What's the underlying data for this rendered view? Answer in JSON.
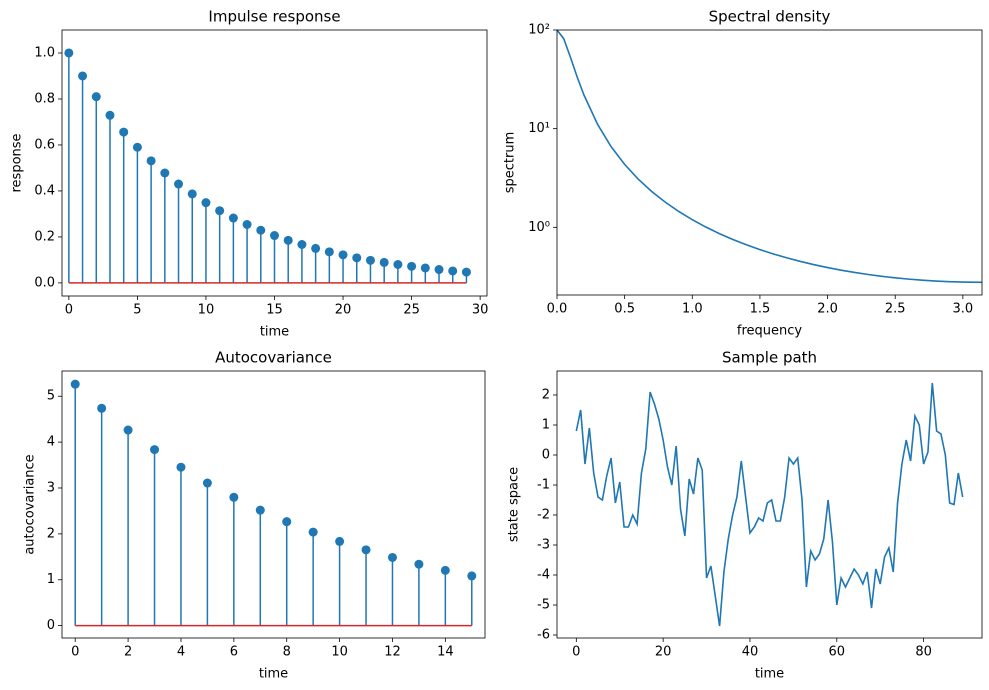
{
  "chart_data": [
    {
      "type": "stem",
      "title": "Impulse response",
      "xlabel": "time",
      "ylabel": "response",
      "x": [
        0,
        1,
        2,
        3,
        4,
        5,
        6,
        7,
        8,
        9,
        10,
        11,
        12,
        13,
        14,
        15,
        16,
        17,
        18,
        19,
        20,
        21,
        22,
        23,
        24,
        25,
        26,
        27,
        28,
        29
      ],
      "values": [
        1.0,
        0.9,
        0.81,
        0.729,
        0.656,
        0.59,
        0.531,
        0.478,
        0.43,
        0.387,
        0.349,
        0.314,
        0.282,
        0.254,
        0.229,
        0.206,
        0.185,
        0.167,
        0.15,
        0.135,
        0.122,
        0.109,
        0.098,
        0.089,
        0.08,
        0.072,
        0.065,
        0.058,
        0.052,
        0.047
      ],
      "color": "#1f77b4",
      "baseline_color": "#d62728",
      "xlim": [
        -0.5,
        30.5
      ],
      "xticks": [
        0,
        5,
        10,
        15,
        20,
        25,
        30
      ],
      "ylim": [
        -0.057,
        1.1
      ],
      "yticks": [
        {
          "value": 0,
          "label": "0.0"
        },
        0.2,
        0.4,
        0.6,
        0.8,
        {
          "value": 1,
          "label": "1.0"
        }
      ]
    },
    {
      "type": "line",
      "title": "Spectral density",
      "xlabel": "frequency",
      "ylabel": "spectrum",
      "x": [
        0,
        0.05,
        0.1,
        0.15,
        0.2,
        0.3,
        0.4,
        0.5,
        0.6,
        0.7,
        0.8,
        0.9,
        1.0,
        1.1,
        1.2,
        1.3,
        1.4,
        1.5,
        1.6,
        1.7,
        1.8,
        1.9,
        2.0,
        2.1,
        2.2,
        2.3,
        2.4,
        2.5,
        2.6,
        2.7,
        2.8,
        2.9,
        3.0,
        3.1416
      ],
      "values": [
        100,
        81.63,
        52.65,
        33.1,
        21.8,
        11.06,
        6.575,
        4.341,
        3.083,
        2.308,
        1.799,
        1.447,
        1.194,
        1.0065,
        0.8637,
        0.7527,
        0.6649,
        0.5943,
        0.5369,
        0.4897,
        0.4507,
        0.4181,
        0.3908,
        0.3678,
        0.3485,
        0.3323,
        0.3187,
        0.3075,
        0.2983,
        0.2909,
        0.2852,
        0.2811,
        0.2784,
        0.277
      ],
      "color": "#1f77b4",
      "log_y": true,
      "xlim": [
        0,
        3.1416
      ],
      "xticks": [
        {
          "value": 0,
          "label": "0.0"
        },
        0.5,
        {
          "value": 1,
          "label": "1.0"
        },
        1.5,
        {
          "value": 2,
          "label": "2.0"
        },
        2.5,
        {
          "value": 3,
          "label": "3.0"
        }
      ],
      "ylim": [
        0.206,
        100
      ],
      "yticks": [
        {
          "value": 1,
          "label": "10⁰"
        },
        {
          "value": 10,
          "label": "10¹"
        },
        {
          "value": 100,
          "label": "10²"
        }
      ]
    },
    {
      "type": "stem",
      "title": "Autocovariance",
      "xlabel": "time",
      "ylabel": "autocovariance",
      "x": [
        0,
        1,
        2,
        3,
        4,
        5,
        6,
        7,
        8,
        9,
        10,
        11,
        12,
        13,
        14,
        15
      ],
      "values": [
        5.263,
        4.737,
        4.263,
        3.837,
        3.453,
        3.108,
        2.797,
        2.517,
        2.266,
        2.039,
        1.835,
        1.652,
        1.486,
        1.338,
        1.204,
        1.084
      ],
      "color": "#1f77b4",
      "baseline_color": "#d62728",
      "xlim": [
        -0.5,
        15.5
      ],
      "xticks": [
        0,
        2,
        4,
        6,
        8,
        10,
        12,
        14
      ],
      "ylim": [
        -0.27,
        5.55
      ],
      "yticks": [
        0,
        1,
        2,
        3,
        4,
        5
      ]
    },
    {
      "type": "line",
      "title": "Sample path",
      "xlabel": "time",
      "ylabel": "state space",
      "x": [
        0,
        1,
        2,
        3,
        4,
        5,
        6,
        7,
        8,
        9,
        10,
        11,
        12,
        13,
        14,
        15,
        16,
        17,
        18,
        19,
        20,
        21,
        22,
        23,
        24,
        25,
        26,
        27,
        28,
        29,
        30,
        31,
        32,
        33,
        34,
        35,
        36,
        37,
        38,
        39,
        40,
        41,
        42,
        43,
        44,
        45,
        46,
        47,
        48,
        49,
        50,
        51,
        52,
        53,
        54,
        55,
        56,
        57,
        58,
        59,
        60,
        61,
        62,
        63,
        64,
        65,
        66,
        67,
        68,
        69,
        70,
        71,
        72,
        73,
        74,
        75,
        76,
        77,
        78,
        79,
        80,
        81,
        82,
        83,
        84,
        85,
        86,
        87,
        88,
        89
      ],
      "values": [
        0.8,
        1.5,
        -0.3,
        0.9,
        -0.6,
        -1.4,
        -1.5,
        -0.7,
        -0.1,
        -1.6,
        -0.9,
        -2.4,
        -2.4,
        -2.0,
        -2.3,
        -0.6,
        0.2,
        2.1,
        1.7,
        1.2,
        0.5,
        -0.4,
        -1.0,
        0.3,
        -1.8,
        -2.7,
        -0.8,
        -1.3,
        -0.1,
        -0.5,
        -4.1,
        -3.7,
        -4.7,
        -5.7,
        -3.9,
        -2.8,
        -2.0,
        -1.4,
        -0.2,
        -1.4,
        -2.6,
        -2.4,
        -2.1,
        -2.2,
        -1.6,
        -1.5,
        -2.2,
        -2.2,
        -1.4,
        -0.1,
        -0.3,
        -0.1,
        -1.5,
        -4.4,
        -3.2,
        -3.5,
        -3.3,
        -2.8,
        -1.5,
        -2.9,
        -5.0,
        -4.1,
        -4.4,
        -4.1,
        -3.8,
        -4.0,
        -4.3,
        -3.9,
        -5.1,
        -3.8,
        -4.3,
        -3.4,
        -3.1,
        -3.9,
        -1.6,
        -0.3,
        0.5,
        -0.2,
        1.3,
        1.0,
        -0.3,
        0.1,
        2.4,
        0.8,
        0.7,
        0.0,
        -1.6,
        -1.65,
        -0.6,
        -1.4
      ],
      "color": "#1f77b4",
      "xlim": [
        -4.45,
        93.45
      ],
      "xticks": [
        0,
        20,
        40,
        60,
        80
      ],
      "ylim": [
        -6.1,
        2.8
      ],
      "yticks": [
        -6,
        -5,
        -4,
        -3,
        -2,
        -1,
        0,
        1,
        2
      ]
    }
  ]
}
